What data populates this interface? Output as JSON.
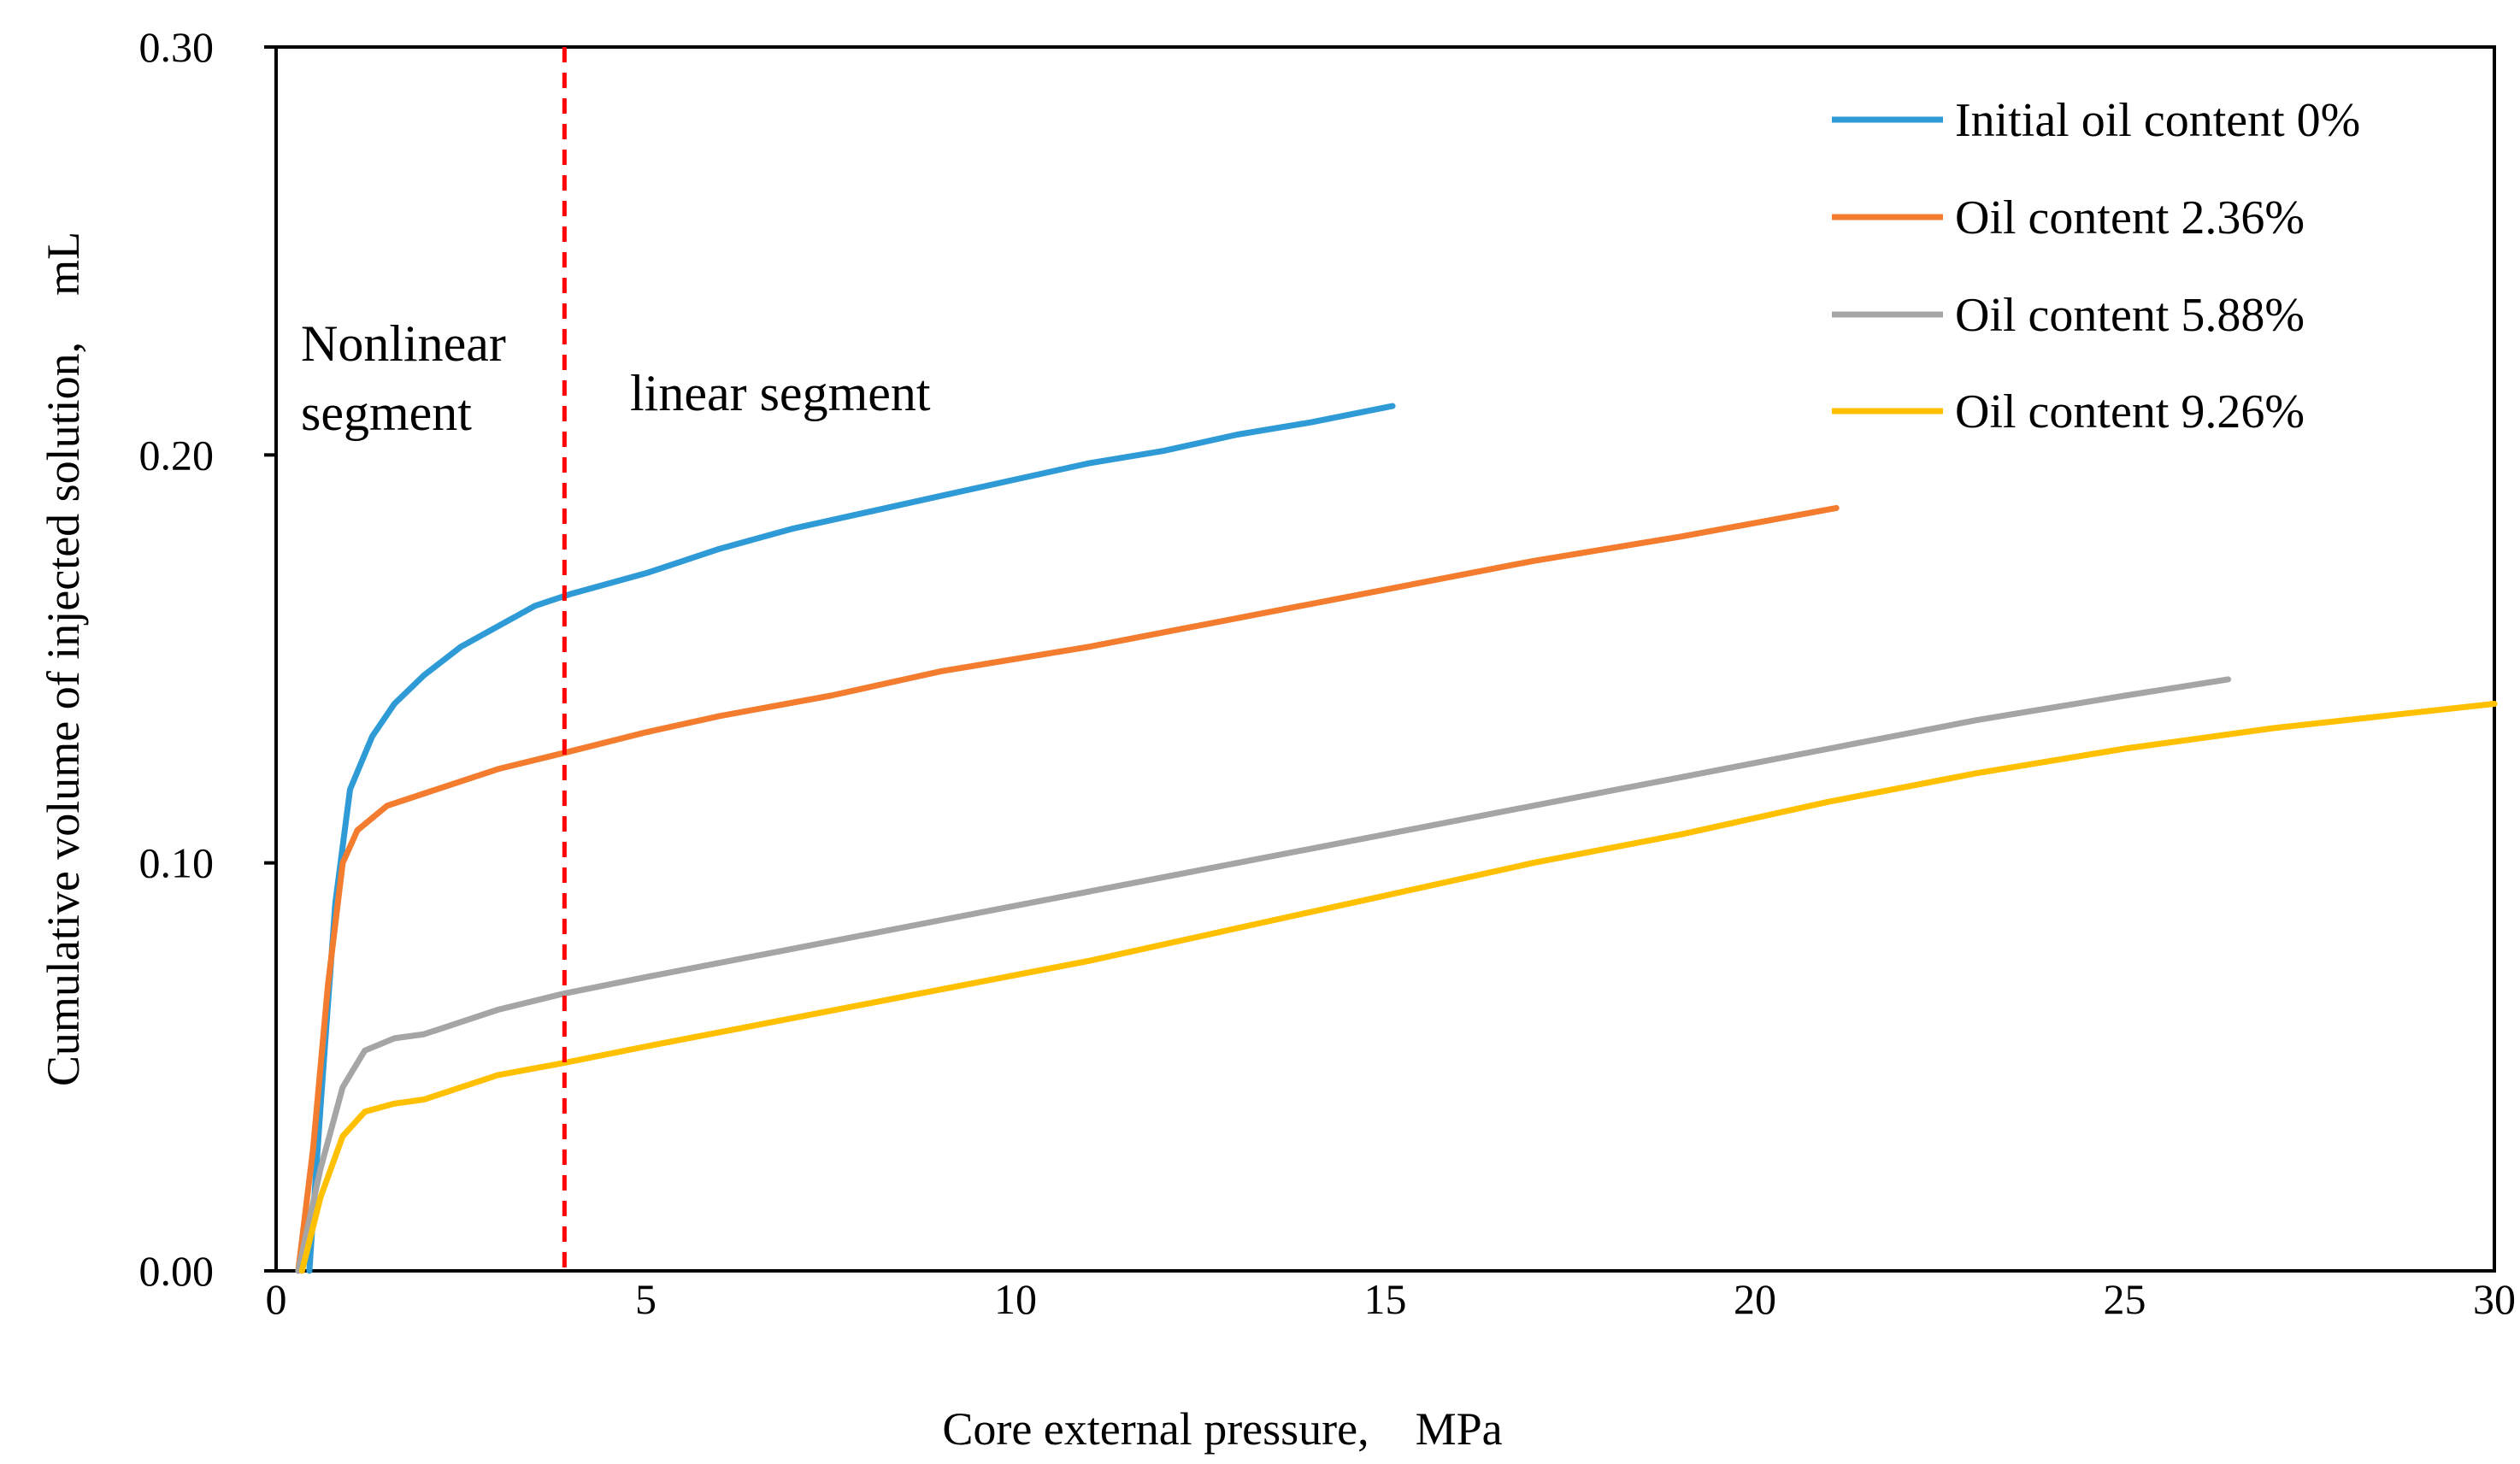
{
  "chart_data": {
    "type": "line",
    "title": "",
    "xlabel": "Core external pressure,　MPa",
    "ylabel": "Cumulative volume of injected solution,　mL",
    "xlim": [
      0,
      30
    ],
    "ylim": [
      0,
      0.3
    ],
    "x_ticks": [
      "0",
      "5",
      "10",
      "15",
      "20",
      "25",
      "30"
    ],
    "y_ticks": [
      "0.00",
      "0.10",
      "0.20",
      "0.30"
    ],
    "grid": false,
    "legend_position": "top-right",
    "annotations": {
      "nonlinear_line1": "Nonlinear",
      "nonlinear_line2": "segment",
      "linear": "linear segment",
      "divider_x": 3.9
    },
    "series": [
      {
        "name": "Initial oil content 0%",
        "color": "#2E9BD6",
        "points": [
          [
            0.45,
            0
          ],
          [
            0.6,
            0.04
          ],
          [
            0.8,
            0.09
          ],
          [
            1.0,
            0.118
          ],
          [
            1.3,
            0.131
          ],
          [
            1.6,
            0.139
          ],
          [
            2.0,
            0.146
          ],
          [
            2.5,
            0.153
          ],
          [
            3.0,
            0.158
          ],
          [
            3.5,
            0.163
          ],
          [
            4.0,
            0.166
          ],
          [
            5.0,
            0.171
          ],
          [
            6.0,
            0.177
          ],
          [
            7.0,
            0.182
          ],
          [
            8.0,
            0.186
          ],
          [
            9.0,
            0.19
          ],
          [
            10.0,
            0.194
          ],
          [
            11.0,
            0.198
          ],
          [
            12.0,
            0.201
          ],
          [
            13.0,
            0.205
          ],
          [
            14.0,
            0.208
          ],
          [
            15.1,
            0.212
          ]
        ]
      },
      {
        "name": "Oil content 2.36%",
        "color": "#F37C2E",
        "points": [
          [
            0.3,
            0
          ],
          [
            0.5,
            0.03
          ],
          [
            0.7,
            0.07
          ],
          [
            0.9,
            0.1
          ],
          [
            1.1,
            0.108
          ],
          [
            1.5,
            0.114
          ],
          [
            2.0,
            0.117
          ],
          [
            2.5,
            0.12
          ],
          [
            3.0,
            0.123
          ],
          [
            3.9,
            0.127
          ],
          [
            5.0,
            0.132
          ],
          [
            6.0,
            0.136
          ],
          [
            7.5,
            0.141
          ],
          [
            9.0,
            0.147
          ],
          [
            11.0,
            0.153
          ],
          [
            13.0,
            0.16
          ],
          [
            15.0,
            0.167
          ],
          [
            17.0,
            0.174
          ],
          [
            19.0,
            0.18
          ],
          [
            21.1,
            0.187
          ]
        ]
      },
      {
        "name": "Oil content 5.88%",
        "color": "#A5A5A5",
        "points": [
          [
            0.3,
            0
          ],
          [
            0.6,
            0.025
          ],
          [
            0.9,
            0.045
          ],
          [
            1.2,
            0.054
          ],
          [
            1.6,
            0.057
          ],
          [
            2.0,
            0.058
          ],
          [
            2.5,
            0.061
          ],
          [
            3.0,
            0.064
          ],
          [
            3.9,
            0.068
          ],
          [
            5.0,
            0.072
          ],
          [
            7.0,
            0.079
          ],
          [
            9.0,
            0.086
          ],
          [
            11.0,
            0.093
          ],
          [
            13.0,
            0.1
          ],
          [
            15.0,
            0.107
          ],
          [
            17.0,
            0.114
          ],
          [
            19.0,
            0.121
          ],
          [
            21.0,
            0.128
          ],
          [
            23.0,
            0.135
          ],
          [
            25.0,
            0.141
          ],
          [
            26.4,
            0.145
          ]
        ]
      },
      {
        "name": "Oil content 9.26%",
        "color": "#FFC000",
        "points": [
          [
            0.35,
            0
          ],
          [
            0.6,
            0.018
          ],
          [
            0.9,
            0.033
          ],
          [
            1.2,
            0.039
          ],
          [
            1.6,
            0.041
          ],
          [
            2.0,
            0.042
          ],
          [
            2.5,
            0.045
          ],
          [
            3.0,
            0.048
          ],
          [
            3.9,
            0.051
          ],
          [
            5.0,
            0.055
          ],
          [
            7.0,
            0.062
          ],
          [
            9.0,
            0.069
          ],
          [
            11.0,
            0.076
          ],
          [
            13.0,
            0.084
          ],
          [
            15.0,
            0.092
          ],
          [
            17.0,
            0.1
          ],
          [
            19.0,
            0.107
          ],
          [
            21.0,
            0.115
          ],
          [
            23.0,
            0.122
          ],
          [
            25.0,
            0.128
          ],
          [
            27.0,
            0.133
          ],
          [
            30.0,
            0.139
          ]
        ]
      }
    ]
  }
}
